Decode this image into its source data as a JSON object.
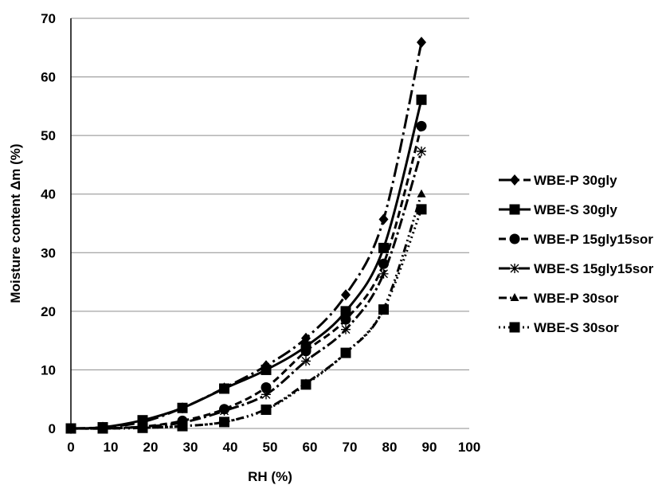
{
  "chart_data": {
    "type": "line",
    "title": "",
    "xlabel": "RH (%)",
    "ylabel": "Moisture content Δm (%)",
    "xlim": [
      0,
      100
    ],
    "ylim": [
      0,
      70
    ],
    "x_ticks": [
      "0",
      "10",
      "20",
      "30",
      "40",
      "50",
      "60",
      "70",
      "80",
      "90",
      "100"
    ],
    "y_ticks": [
      "0",
      "10",
      "20",
      "30",
      "40",
      "50",
      "60",
      "70"
    ],
    "grid": "horizontal",
    "legend_position": "right",
    "x": [
      0,
      8,
      18,
      28,
      38.5,
      49,
      59,
      69,
      78.5,
      88
    ],
    "series": [
      {
        "name": "WBE-P 30gly",
        "marker": "diamond",
        "dash": "18 5 3 5",
        "values": [
          0,
          0.2,
          1.1,
          3.5,
          6.9,
          10.7,
          15.4,
          22.8,
          35.7,
          65.9
        ]
      },
      {
        "name": "WBE-S 30gly",
        "marker": "square",
        "dash": "",
        "values": [
          0,
          0.2,
          1.4,
          3.5,
          6.8,
          10.0,
          14.0,
          20.0,
          30.8,
          56.1
        ]
      },
      {
        "name": "WBE-P 15gly15sor",
        "marker": "circle",
        "dash": "9 5",
        "values": [
          0,
          0,
          0.3,
          1.3,
          3.3,
          7.0,
          13.2,
          18.6,
          28.1,
          51.6
        ]
      },
      {
        "name": "WBE-S 15gly15sor",
        "marker": "asterisk",
        "dash": "14 4 3 4",
        "values": [
          0,
          0,
          0.3,
          1.0,
          3.0,
          5.8,
          11.5,
          16.9,
          26.4,
          47.3
        ]
      },
      {
        "name": "WBE-P 30sor",
        "marker": "triangle",
        "dash": "10 4 2 4 2 4",
        "values": [
          0,
          0,
          0.1,
          0.4,
          1.1,
          3.3,
          7.7,
          12.9,
          20.4,
          40.0
        ]
      },
      {
        "name": "WBE-S 30sor",
        "marker": "square",
        "dash": "2 4",
        "values": [
          0,
          0,
          0.1,
          0.4,
          1.1,
          3.2,
          7.5,
          12.9,
          20.3,
          37.4
        ]
      }
    ]
  }
}
